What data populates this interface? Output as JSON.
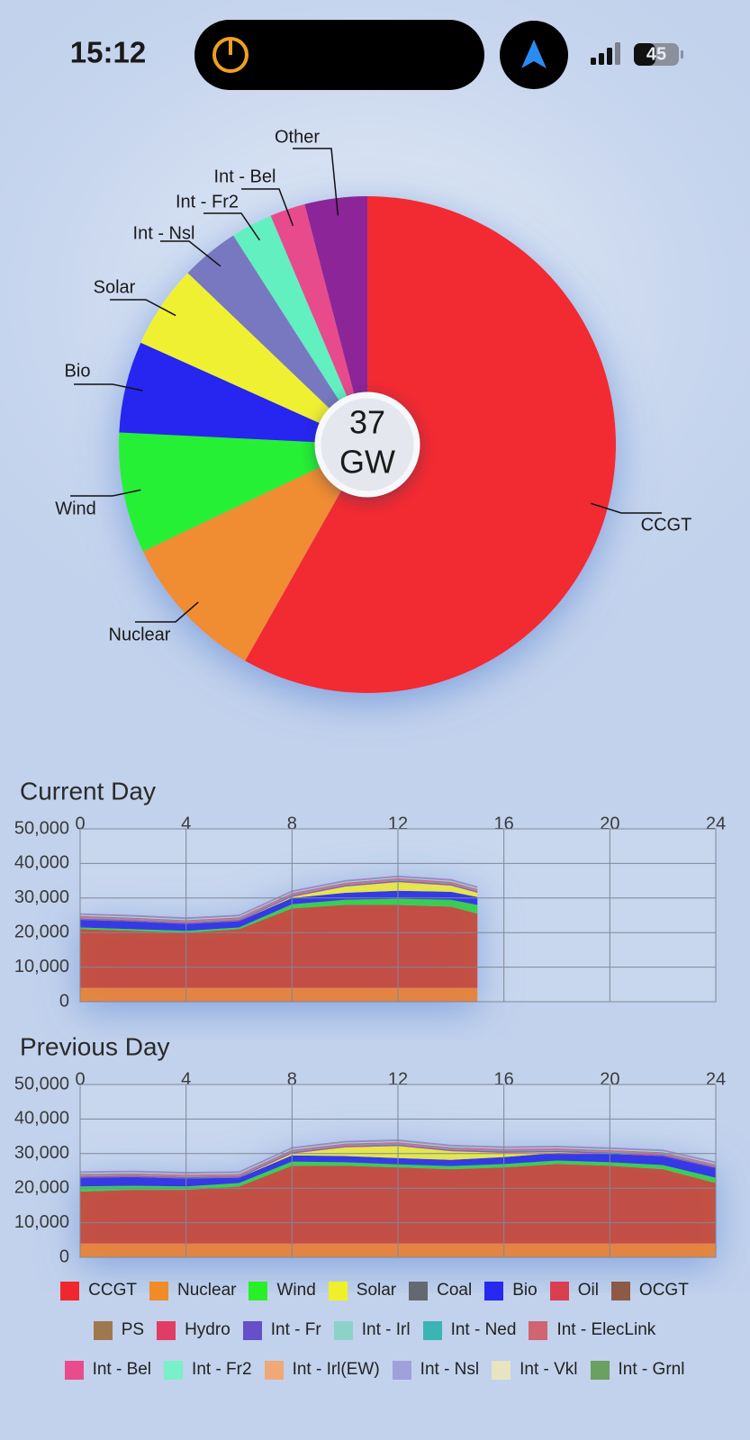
{
  "status_bar": {
    "time": "15:12",
    "battery": "45"
  },
  "chart_data": [
    {
      "type": "pie",
      "categories": [
        "CCGT",
        "Nuclear",
        "Wind",
        "Bio",
        "Solar",
        "Int - Nsl",
        "Int - Fr2",
        "Int - Bel",
        "Other"
      ],
      "values": [
        21.5,
        3.6,
        2.9,
        2.2,
        2.0,
        1.4,
        1.0,
        0.85,
        1.5
      ],
      "colors": [
        "#f22a32",
        "#f08c30",
        "#28f034",
        "#2828f0",
        "#f0f030",
        "#7878c0",
        "#64f0c0",
        "#e84c8c",
        "#8c2898"
      ],
      "center_value": 37,
      "center_unit": "GW"
    },
    {
      "type": "area",
      "title": "Current Day",
      "x": [
        0,
        2,
        4,
        6,
        8,
        10,
        12,
        14,
        15
      ],
      "xlim": [
        0,
        24
      ],
      "xticks": [
        0,
        4,
        8,
        12,
        16,
        20,
        24
      ],
      "ylim": [
        0,
        50000
      ],
      "yticks": [
        0,
        {
          "value": 10000,
          "label": "10,000"
        },
        {
          "value": 20000,
          "label": "20,000"
        },
        {
          "value": 30000,
          "label": "30,000"
        },
        {
          "value": 40000,
          "label": "40,000"
        },
        {
          "value": 50000,
          "label": "50,000"
        }
      ],
      "grid": true,
      "stacked": true,
      "series": [
        {
          "color": "#e8802a",
          "values": [
            4000,
            4000,
            4000,
            4000,
            4000,
            4000,
            4000,
            4000,
            4000
          ]
        },
        {
          "color": "#c4462e",
          "values": [
            17000,
            16500,
            16000,
            17000,
            23000,
            24000,
            24000,
            23500,
            21500
          ]
        },
        {
          "color": "#2ed040",
          "values": [
            500,
            500,
            500,
            500,
            1200,
            1500,
            1800,
            2000,
            2500
          ]
        },
        {
          "color": "#2c2ee6",
          "values": [
            2200,
            2200,
            2000,
            1800,
            1800,
            2000,
            2300,
            2300,
            2300
          ]
        },
        {
          "color": "#e8e83c",
          "values": [
            0,
            0,
            0,
            0,
            300,
            1800,
            2500,
            1800,
            1200
          ]
        },
        {
          "color": "#e03c64",
          "values": [
            200,
            200,
            200,
            200,
            200,
            200,
            200,
            200,
            200
          ]
        },
        {
          "color": "#6450c8",
          "values": [
            200,
            200,
            200,
            200,
            200,
            200,
            200,
            200,
            200
          ]
        },
        {
          "color": "#3cb4b4",
          "values": [
            200,
            200,
            200,
            200,
            200,
            200,
            200,
            200,
            200
          ]
        },
        {
          "color": "#d06470",
          "values": [
            200,
            200,
            200,
            200,
            200,
            200,
            200,
            200,
            200
          ]
        },
        {
          "color": "#e84c8c",
          "values": [
            300,
            300,
            300,
            300,
            300,
            300,
            300,
            300,
            300
          ]
        },
        {
          "color": "#78e8c0",
          "values": [
            300,
            300,
            300,
            300,
            300,
            300,
            300,
            300,
            300
          ]
        },
        {
          "color": "#a080c8",
          "values": [
            500,
            500,
            500,
            500,
            500,
            500,
            500,
            500,
            500
          ]
        }
      ]
    },
    {
      "type": "area",
      "title": "Previous Day",
      "x": [
        0,
        2,
        4,
        6,
        8,
        10,
        12,
        14,
        16,
        18,
        20,
        22,
        24
      ],
      "xlim": [
        0,
        24
      ],
      "xticks": [
        0,
        4,
        8,
        12,
        16,
        20,
        24
      ],
      "ylim": [
        0,
        50000
      ],
      "yticks": [
        0,
        {
          "value": 10000,
          "label": "10,000"
        },
        {
          "value": 20000,
          "label": "20,000"
        },
        {
          "value": 30000,
          "label": "30,000"
        },
        {
          "value": 40000,
          "label": "40,000"
        },
        {
          "value": 50000,
          "label": "50,000"
        }
      ],
      "grid": true,
      "stacked": true,
      "series": [
        {
          "color": "#e8802a",
          "values": [
            4000,
            4000,
            4000,
            4000,
            4000,
            4000,
            4000,
            4000,
            4000,
            4000,
            4000,
            4000,
            4000
          ]
        },
        {
          "color": "#c4462e",
          "values": [
            15000,
            15500,
            15500,
            16500,
            22500,
            22500,
            22000,
            21500,
            22000,
            23000,
            22500,
            21500,
            17500
          ]
        },
        {
          "color": "#2ed040",
          "values": [
            1500,
            1200,
            1000,
            1000,
            1200,
            1000,
            900,
            900,
            1000,
            1000,
            1000,
            1200,
            1500
          ]
        },
        {
          "color": "#2c2ee6",
          "values": [
            2500,
            2500,
            2300,
            1500,
            1800,
            1800,
            1800,
            1800,
            2000,
            2200,
            2400,
            2600,
            2800
          ]
        },
        {
          "color": "#e8e83c",
          "values": [
            0,
            0,
            0,
            0,
            500,
            2500,
            3500,
            2500,
            1200,
            200,
            0,
            0,
            0
          ]
        },
        {
          "color": "#e03c64",
          "values": [
            200,
            200,
            200,
            200,
            200,
            200,
            200,
            200,
            200,
            200,
            200,
            200,
            200
          ]
        },
        {
          "color": "#6450c8",
          "values": [
            200,
            200,
            200,
            200,
            200,
            200,
            200,
            200,
            200,
            200,
            200,
            200,
            200
          ]
        },
        {
          "color": "#3cb4b4",
          "values": [
            200,
            200,
            200,
            200,
            200,
            200,
            200,
            200,
            200,
            200,
            200,
            200,
            200
          ]
        },
        {
          "color": "#d06470",
          "values": [
            200,
            200,
            200,
            200,
            200,
            200,
            200,
            200,
            200,
            200,
            200,
            200,
            200
          ]
        },
        {
          "color": "#e84c8c",
          "values": [
            300,
            300,
            300,
            300,
            300,
            300,
            300,
            300,
            300,
            300,
            300,
            300,
            300
          ]
        },
        {
          "color": "#78e8c0",
          "values": [
            300,
            300,
            300,
            300,
            300,
            300,
            300,
            300,
            300,
            300,
            300,
            300,
            300
          ]
        },
        {
          "color": "#a080c8",
          "values": [
            500,
            500,
            500,
            500,
            500,
            500,
            500,
            500,
            500,
            500,
            500,
            500,
            500
          ]
        }
      ]
    }
  ],
  "legend": [
    {
      "name": "CCGT",
      "color": "#f0282e"
    },
    {
      "name": "Nuclear",
      "color": "#f08c28"
    },
    {
      "name": "Wind",
      "color": "#28f028"
    },
    {
      "name": "Solar",
      "color": "#f0f028"
    },
    {
      "name": "Coal",
      "color": "#646870"
    },
    {
      "name": "Bio",
      "color": "#2828f0"
    },
    {
      "name": "Oil",
      "color": "#d84050"
    },
    {
      "name": "OCGT",
      "color": "#8c5a46"
    },
    {
      "name": "PS",
      "color": "#a07850"
    },
    {
      "name": "Hydro",
      "color": "#e03c64"
    },
    {
      "name": "Int - Fr",
      "color": "#6450c8"
    },
    {
      "name": "Int - Irl",
      "color": "#8cd2c8"
    },
    {
      "name": "Int - Ned",
      "color": "#3cb4b4"
    },
    {
      "name": "Int - ElecLink",
      "color": "#d06470"
    },
    {
      "name": "Int - Bel",
      "color": "#e84c8c"
    },
    {
      "name": "Int - Fr2",
      "color": "#78f0c8"
    },
    {
      "name": "Int - Irl(EW)",
      "color": "#f0a878"
    },
    {
      "name": "Int - Nsl",
      "color": "#a0a0dc"
    },
    {
      "name": "Int - Vkl",
      "color": "#e8e4c0"
    },
    {
      "name": "Int - Grnl",
      "color": "#6aa060"
    }
  ]
}
